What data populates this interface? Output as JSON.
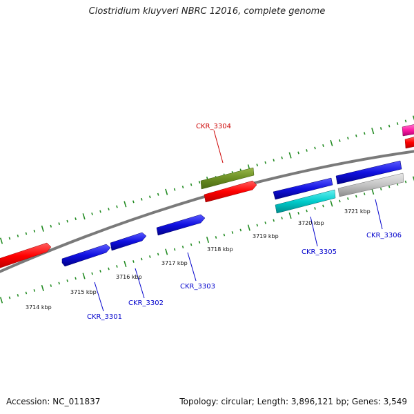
{
  "title": "Clostridium kluyveri NBRC 12016, complete genome",
  "footer": {
    "accession": "Accession: NC_011837",
    "summary": "Topology: circular; Length: 3,896,121 bp; Genes: 3,549"
  },
  "kbp_labels": [
    "3714 kbp",
    "3715 kbp",
    "3716 kbp",
    "3717 kbp",
    "3718 kbp",
    "3719 kbp",
    "3720 kbp",
    "3721 kbp"
  ],
  "genes": [
    {
      "label": "CKR_3301",
      "color": "#0000cc"
    },
    {
      "label": "CKR_3302",
      "color": "#0000cc"
    },
    {
      "label": "CKR_3303",
      "color": "#0000cc"
    },
    {
      "label": "CKR_3304",
      "color": "#cc0000"
    },
    {
      "label": "CKR_3305",
      "color": "#0000cc"
    },
    {
      "label": "CKR_3306",
      "color": "#0000cc"
    }
  ],
  "colors": {
    "backbone": "#808080",
    "ticks": "#228b22",
    "feature_red": "#ff0000",
    "feature_blue": "#1010e0",
    "feature_olive": "#6b8e23",
    "feature_cyan": "#00cccc",
    "feature_gray": "#bfbfbf",
    "feature_magenta": "#ff1aa3"
  }
}
